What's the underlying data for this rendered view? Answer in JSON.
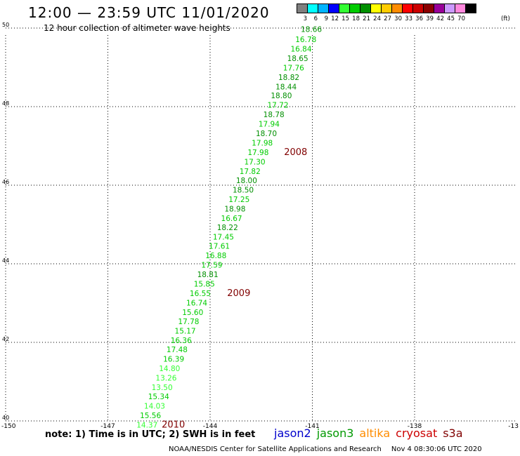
{
  "header": {
    "title": "12:00 — 23:59 UTC 11/01/2020",
    "subtitle": "12 hour collection of altimeter wave heights"
  },
  "color_scale": {
    "swatches": [
      "#7f7f7f",
      "#00ffff",
      "#00b4ff",
      "#0000ff",
      "#33ff33",
      "#00cc00",
      "#008f00",
      "#ffff00",
      "#ffcc00",
      "#ff8c00",
      "#ff0000",
      "#cc0000",
      "#8b0000",
      "#990099",
      "#cc99ff",
      "#ff88dd",
      "#000000"
    ],
    "labels": [
      "3",
      "6",
      "9",
      "12",
      "15",
      "18",
      "21",
      "24",
      "27",
      "30",
      "33",
      "36",
      "39",
      "42",
      "45",
      "70"
    ],
    "unit": "(ft)"
  },
  "axes": {
    "lat_ticks": [
      "50",
      "48",
      "46",
      "44",
      "42",
      "40"
    ],
    "lon_ticks": [
      "-150",
      "-147",
      "-144",
      "-141",
      "-138",
      "-13"
    ]
  },
  "track": {
    "points": [
      {
        "value": "18.66",
        "lat": 49.9,
        "lon": -141.34,
        "color": "#008f00"
      },
      {
        "value": "16.78",
        "lat": 49.64,
        "lon": -141.5,
        "color": "#00cc00"
      },
      {
        "value": "16.84",
        "lat": 49.4,
        "lon": -141.64,
        "color": "#00cc00"
      },
      {
        "value": "18.65",
        "lat": 49.16,
        "lon": -141.74,
        "color": "#008f00"
      },
      {
        "value": "17.76",
        "lat": 48.92,
        "lon": -141.86,
        "color": "#00cc00"
      },
      {
        "value": "18.82",
        "lat": 48.68,
        "lon": -142.0,
        "color": "#008f00"
      },
      {
        "value": "18.44",
        "lat": 48.44,
        "lon": -142.08,
        "color": "#008f00"
      },
      {
        "value": "18.80",
        "lat": 48.21,
        "lon": -142.22,
        "color": "#008f00"
      },
      {
        "value": "17.72",
        "lat": 47.97,
        "lon": -142.32,
        "color": "#00cc00"
      },
      {
        "value": "18.78",
        "lat": 47.73,
        "lon": -142.44,
        "color": "#008f00"
      },
      {
        "value": "17.94",
        "lat": 47.49,
        "lon": -142.58,
        "color": "#00cc00"
      },
      {
        "value": "18.70",
        "lat": 47.25,
        "lon": -142.66,
        "color": "#008f00"
      },
      {
        "value": "17.98",
        "lat": 47.01,
        "lon": -142.78,
        "color": "#00cc00"
      },
      {
        "value": "17.98",
        "lat": 46.77,
        "lon": -142.9,
        "color": "#00cc00"
      },
      {
        "value": "17.30",
        "lat": 46.53,
        "lon": -143.0,
        "color": "#00cc00"
      },
      {
        "value": "17.82",
        "lat": 46.29,
        "lon": -143.14,
        "color": "#00cc00"
      },
      {
        "value": "18.00",
        "lat": 46.05,
        "lon": -143.24,
        "color": "#008f00"
      },
      {
        "value": "18.50",
        "lat": 45.81,
        "lon": -143.34,
        "color": "#008f00"
      },
      {
        "value": "17.25",
        "lat": 45.57,
        "lon": -143.46,
        "color": "#00cc00"
      },
      {
        "value": "18.98",
        "lat": 45.33,
        "lon": -143.58,
        "color": "#008f00"
      },
      {
        "value": "16.67",
        "lat": 45.09,
        "lon": -143.68,
        "color": "#00cc00"
      },
      {
        "value": "18.22",
        "lat": 44.86,
        "lon": -143.8,
        "color": "#008f00"
      },
      {
        "value": "17.45",
        "lat": 44.62,
        "lon": -143.92,
        "color": "#00cc00"
      },
      {
        "value": "17.61",
        "lat": 44.38,
        "lon": -144.04,
        "color": "#00cc00"
      },
      {
        "value": "16.88",
        "lat": 44.14,
        "lon": -144.14,
        "color": "#00cc00"
      },
      {
        "value": "17.59",
        "lat": 43.9,
        "lon": -144.26,
        "color": "#00cc00"
      },
      {
        "value": "18.81",
        "lat": 43.66,
        "lon": -144.38,
        "color": "#008f00"
      },
      {
        "value": "15.85",
        "lat": 43.42,
        "lon": -144.48,
        "color": "#00cc00"
      },
      {
        "value": "16.55",
        "lat": 43.18,
        "lon": -144.6,
        "color": "#00cc00"
      },
      {
        "value": "16.74",
        "lat": 42.94,
        "lon": -144.7,
        "color": "#00cc00"
      },
      {
        "value": "15.60",
        "lat": 42.7,
        "lon": -144.82,
        "color": "#00cc00"
      },
      {
        "value": "17.78",
        "lat": 42.46,
        "lon": -144.94,
        "color": "#00cc00"
      },
      {
        "value": "15.17",
        "lat": 42.22,
        "lon": -145.04,
        "color": "#00cc00"
      },
      {
        "value": "16.36",
        "lat": 41.98,
        "lon": -145.16,
        "color": "#00cc00"
      },
      {
        "value": "17.48",
        "lat": 41.75,
        "lon": -145.28,
        "color": "#00cc00"
      },
      {
        "value": "16.39",
        "lat": 41.51,
        "lon": -145.38,
        "color": "#00cc00"
      },
      {
        "value": "14.80",
        "lat": 41.27,
        "lon": -145.5,
        "color": "#33ff33"
      },
      {
        "value": "13.26",
        "lat": 41.03,
        "lon": -145.6,
        "color": "#33ff33"
      },
      {
        "value": "13.50",
        "lat": 40.79,
        "lon": -145.72,
        "color": "#33ff33"
      },
      {
        "value": "15.34",
        "lat": 40.55,
        "lon": -145.82,
        "color": "#00cc00"
      },
      {
        "value": "14.03",
        "lat": 40.31,
        "lon": -145.94,
        "color": "#33ff33"
      },
      {
        "value": "15.56",
        "lat": 40.07,
        "lon": -146.06,
        "color": "#00cc00"
      },
      {
        "value": "14.37",
        "lat": 39.83,
        "lon": -146.16,
        "color": "#33ff33"
      }
    ],
    "time_labels": [
      {
        "text": "2008",
        "lat": 46.77,
        "lon": -141.83,
        "color": "#800000"
      },
      {
        "text": "2009",
        "lat": 43.18,
        "lon": -143.5,
        "color": "#800000"
      },
      {
        "text": "2010",
        "lat": 39.83,
        "lon": -145.42,
        "color": "#800000"
      }
    ]
  },
  "footer": {
    "note": "note:  1) Time is in UTC;  2) SWH is in feet",
    "satellites": [
      {
        "name": "jason2",
        "color": "#0000cc"
      },
      {
        "name": "jason3",
        "color": "#009900"
      },
      {
        "name": "altika",
        "color": "#ff8c00"
      },
      {
        "name": "cryosat",
        "color": "#cc0000"
      },
      {
        "name": "s3a",
        "color": "#800000"
      }
    ],
    "credit": "NOAA/NESDIS Center for Satellite Applications and Research",
    "timestamp": "Nov  4 08:30:06 UTC 2020"
  }
}
